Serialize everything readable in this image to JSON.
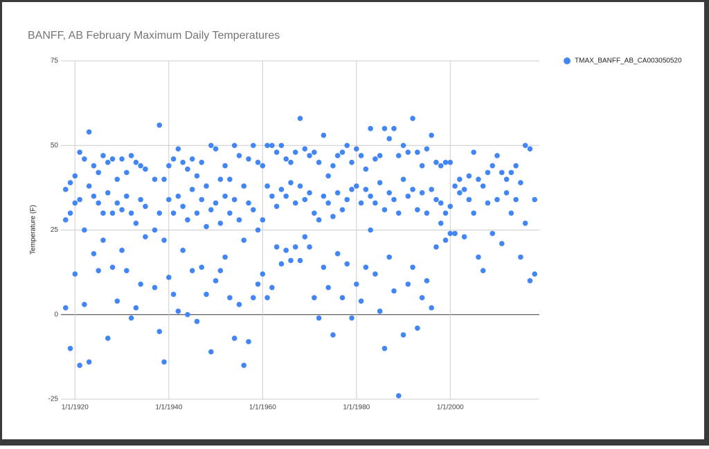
{
  "chart_data": {
    "type": "scatter",
    "title": "BANFF, AB February Maximum Daily Temperatures",
    "y_label": "Temperature (F)",
    "x": [
      1918,
      1918,
      1918,
      1919,
      1919,
      1919,
      1920,
      1920,
      1920,
      1921,
      1921,
      1921,
      1922,
      1922,
      1922,
      1923,
      1923,
      1923,
      1924,
      1924,
      1924,
      1925,
      1925,
      1925,
      1926,
      1926,
      1926,
      1927,
      1927,
      1927,
      1928,
      1928,
      1928,
      1929,
      1929,
      1929,
      1930,
      1930,
      1930,
      1931,
      1931,
      1931,
      1932,
      1932,
      1932,
      1933,
      1933,
      1933,
      1934,
      1934,
      1934,
      1935,
      1935,
      1935,
      1937,
      1937,
      1937,
      1938,
      1938,
      1938,
      1939,
      1939,
      1939,
      1940,
      1940,
      1940,
      1941,
      1941,
      1941,
      1942,
      1942,
      1942,
      1943,
      1943,
      1943,
      1944,
      1944,
      1944,
      1945,
      1945,
      1945,
      1946,
      1946,
      1946,
      1947,
      1947,
      1947,
      1948,
      1948,
      1948,
      1949,
      1949,
      1949,
      1950,
      1950,
      1950,
      1951,
      1951,
      1951,
      1952,
      1952,
      1952,
      1953,
      1953,
      1953,
      1954,
      1954,
      1954,
      1955,
      1955,
      1955,
      1956,
      1956,
      1956,
      1957,
      1957,
      1957,
      1958,
      1958,
      1958,
      1959,
      1959,
      1959,
      1960,
      1960,
      1960,
      1961,
      1961,
      1961,
      1962,
      1962,
      1962,
      1963,
      1963,
      1963,
      1964,
      1964,
      1964,
      1965,
      1965,
      1965,
      1966,
      1966,
      1966,
      1967,
      1967,
      1967,
      1968,
      1968,
      1968,
      1969,
      1969,
      1969,
      1970,
      1970,
      1970,
      1971,
      1971,
      1971,
      1972,
      1972,
      1972,
      1973,
      1973,
      1973,
      1974,
      1974,
      1974,
      1975,
      1975,
      1975,
      1976,
      1976,
      1976,
      1977,
      1977,
      1977,
      1978,
      1978,
      1978,
      1979,
      1979,
      1979,
      1980,
      1980,
      1980,
      1981,
      1981,
      1981,
      1982,
      1982,
      1982,
      1983,
      1983,
      1983,
      1984,
      1984,
      1984,
      1985,
      1985,
      1985,
      1986,
      1986,
      1986,
      1987,
      1987,
      1987,
      1988,
      1988,
      1988,
      1989,
      1989,
      1989,
      1990,
      1990,
      1990,
      1991,
      1991,
      1991,
      1992,
      1992,
      1992,
      1993,
      1993,
      1993,
      1994,
      1994,
      1994,
      1995,
      1995,
      1995,
      1996,
      1996,
      1996,
      1997,
      1997,
      1997,
      1998,
      1998,
      1998,
      1999,
      1999,
      1999,
      2000,
      2000,
      2000,
      2001,
      2001,
      2002,
      2002,
      2003,
      2003,
      2004,
      2004,
      2005,
      2005,
      2006,
      2006,
      2007,
      2007,
      2008,
      2008,
      2009,
      2009,
      2010,
      2010,
      2011,
      2011,
      2012,
      2012,
      2013,
      2013,
      2014,
      2014,
      2015,
      2015,
      2016,
      2016,
      2017,
      2017,
      2018,
      2018
    ],
    "series": [
      {
        "name": "TMAX_BANFF_AB_CA003050520",
        "color": "#4285f4",
        "values": [
          37,
          28,
          2,
          39,
          30,
          -10,
          41,
          33,
          12,
          48,
          34,
          -15,
          46,
          25,
          3,
          54,
          38,
          -14,
          44,
          35,
          18,
          42,
          33,
          13,
          47,
          30,
          22,
          45,
          36,
          -7,
          46,
          30,
          14,
          40,
          33,
          4,
          46,
          31,
          19,
          42,
          35,
          13,
          47,
          30,
          -1,
          45,
          27,
          2,
          44,
          34,
          9,
          43,
          32,
          23,
          40,
          25,
          8,
          56,
          30,
          -5,
          40,
          22,
          -14,
          44,
          34,
          11,
          46,
          30,
          6,
          49,
          35,
          1,
          45,
          32,
          19,
          43,
          28,
          0,
          46,
          37,
          13,
          41,
          30,
          -2,
          45,
          34,
          14,
          38,
          26,
          6,
          50,
          31,
          -11,
          49,
          33,
          10,
          40,
          27,
          13,
          44,
          35,
          17,
          40,
          30,
          5,
          50,
          34,
          -7,
          47,
          28,
          3,
          38,
          22,
          -15,
          46,
          33,
          -8,
          50,
          31,
          5,
          45,
          25,
          9,
          44,
          28,
          12,
          50,
          38,
          5,
          50,
          35,
          8,
          48,
          32,
          20,
          50,
          37,
          15,
          46,
          35,
          19,
          45,
          39,
          16,
          48,
          33,
          20,
          58,
          38,
          16,
          49,
          34,
          23,
          47,
          36,
          20,
          48,
          30,
          5,
          45,
          28,
          -1,
          53,
          35,
          14,
          41,
          33,
          8,
          44,
          29,
          -6,
          47,
          36,
          18,
          48,
          31,
          5,
          50,
          34,
          15,
          45,
          37,
          -1,
          49,
          38,
          9,
          47,
          33,
          4,
          43,
          37,
          14,
          55,
          35,
          25,
          46,
          33,
          12,
          47,
          39,
          1,
          55,
          31,
          -10,
          52,
          36,
          17,
          55,
          34,
          7,
          47,
          30,
          -24,
          50,
          40,
          -6,
          48,
          35,
          9,
          58,
          37,
          14,
          48,
          31,
          -4,
          44,
          36,
          5,
          49,
          30,
          10,
          53,
          37,
          2,
          45,
          34,
          20,
          44,
          33,
          27,
          45,
          30,
          22,
          45,
          32,
          24,
          38,
          24,
          40,
          36,
          37,
          23,
          41,
          34,
          48,
          30,
          40,
          17,
          38,
          13,
          42,
          33,
          44,
          24,
          47,
          34,
          42,
          21,
          40,
          36,
          42,
          30,
          44,
          34,
          39,
          17,
          50,
          27,
          49,
          10,
          34,
          12
        ]
      }
    ],
    "xlim": [
      1917,
      2019
    ],
    "xticks": [
      {
        "value": 1920,
        "label": "1/1/1920"
      },
      {
        "value": 1940,
        "label": "1/1/1940"
      },
      {
        "value": 1960,
        "label": "1/1/1960"
      },
      {
        "value": 1980,
        "label": "1/1/1980"
      },
      {
        "value": 2000,
        "label": "1/1/2000"
      }
    ],
    "ylim": [
      -25,
      75
    ],
    "yticks": [
      -25,
      0,
      25,
      50,
      75
    ],
    "grid": true,
    "legend": "right"
  }
}
